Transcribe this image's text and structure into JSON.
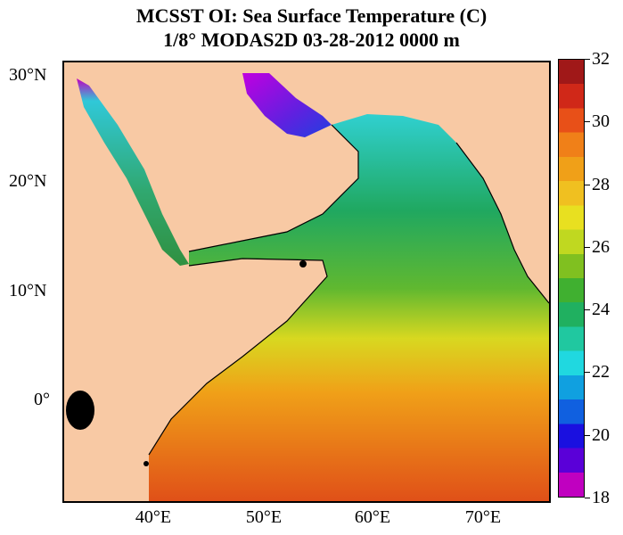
{
  "title": {
    "line1": "MCSST OI:  Sea Surface Temperature (C)",
    "line2": "1/8° MODAS2D 03-28-2012 0000 m"
  },
  "axes": {
    "lat_labels": [
      "30°N",
      "20°N",
      "10°N",
      "0°"
    ],
    "lon_labels": [
      "40°E",
      "50°E",
      "60°E",
      "70°E"
    ]
  },
  "colorbar": {
    "min": 18,
    "max": 32,
    "labels": [
      "32",
      "30",
      "28",
      "26",
      "24",
      "22",
      "20",
      "18"
    ],
    "colors": [
      "#c000c0",
      "#5a00d8",
      "#1a10e0",
      "#1060e0",
      "#10a0e0",
      "#20d8e0",
      "#20c8a0",
      "#20b060",
      "#40b030",
      "#80c020",
      "#c0d820",
      "#e8e020",
      "#f0c020",
      "#f0a018",
      "#f08018",
      "#e85018",
      "#d02818",
      "#a01818"
    ]
  },
  "colors": {
    "land": "#f8c9a4",
    "ocean_warm": "#e87020",
    "ocean_mid": "#e8d020",
    "ocean_cool": "#20a860",
    "gulf_cold": "#8020e0"
  }
}
